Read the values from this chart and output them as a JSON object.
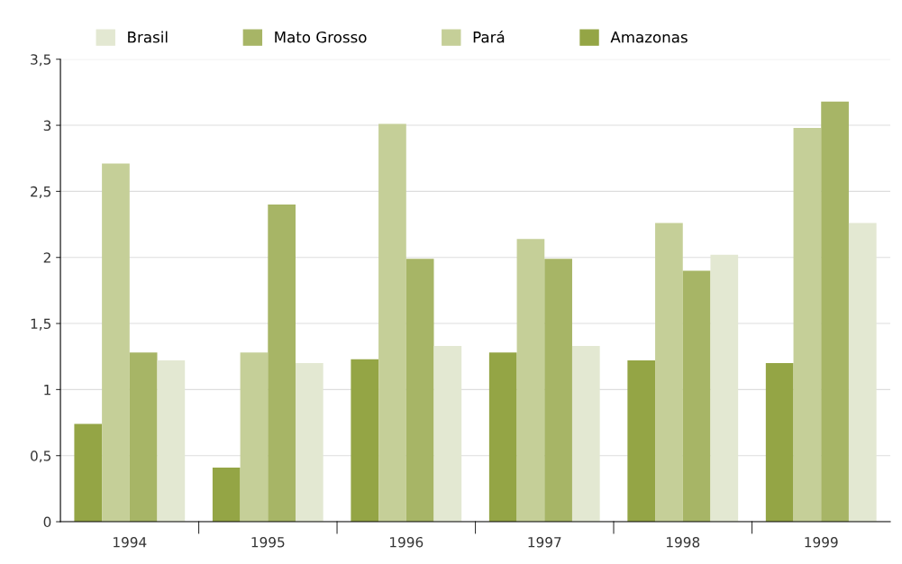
{
  "chart_data": {
    "type": "bar",
    "categories": [
      "1994",
      "1995",
      "1996",
      "1997",
      "1998",
      "1999"
    ],
    "series": [
      {
        "name": "Amazonas",
        "color": "#94a545",
        "values": [
          0.74,
          0.41,
          1.23,
          1.28,
          1.22,
          1.2
        ]
      },
      {
        "name": "Pará",
        "color": "#c5cf98",
        "values": [
          2.71,
          1.28,
          3.01,
          2.14,
          2.26,
          2.98
        ]
      },
      {
        "name": "Mato Grosso",
        "color": "#a7b566",
        "values": [
          1.28,
          2.4,
          1.99,
          1.99,
          1.9,
          3.18
        ]
      },
      {
        "name": "Brasil",
        "color": "#e3e8d2",
        "values": [
          1.22,
          1.2,
          1.33,
          1.33,
          2.02,
          2.26
        ]
      }
    ],
    "ylim": [
      0,
      3.5
    ],
    "yticks": [
      0,
      {
        "value": 0.5,
        "label": "0,5"
      },
      1,
      {
        "value": 1.5,
        "label": "1,5"
      },
      2,
      {
        "value": 2.5,
        "label": "2,5"
      },
      3,
      {
        "value": 3.5,
        "label": "3,5"
      }
    ],
    "grid": "y",
    "legend": "top"
  }
}
